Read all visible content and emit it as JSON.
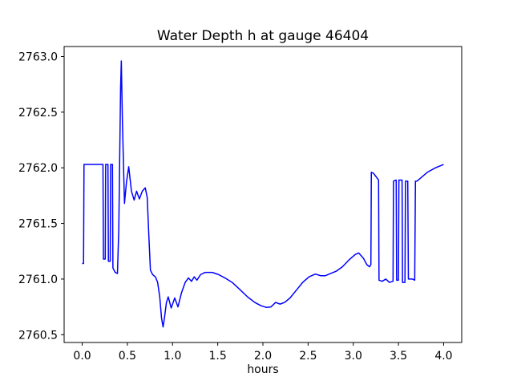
{
  "window": {
    "background": "#ffffff"
  },
  "chart_data": {
    "type": "line",
    "title": "Water Depth h at gauge 46404",
    "xlabel": "hours",
    "ylabel": "",
    "grid": false,
    "legend": "none",
    "axis_color": "#000000",
    "text_color": "#000000",
    "xlim": [
      -0.2,
      4.2
    ],
    "ylim": [
      2760.43,
      2763.09
    ],
    "x_ticks": [
      0.0,
      0.5,
      1.0,
      1.5,
      2.0,
      2.5,
      3.0,
      3.5,
      4.0
    ],
    "x_tick_labels": [
      "0.0",
      "0.5",
      "1.0",
      "1.5",
      "2.0",
      "2.5",
      "3.0",
      "3.5",
      "4.0"
    ],
    "y_ticks": [
      2760.5,
      2761.0,
      2761.5,
      2762.0,
      2762.5,
      2763.0
    ],
    "y_tick_labels": [
      "2760.5",
      "2761.0",
      "2761.5",
      "2762.0",
      "2762.5",
      "2763.0"
    ],
    "series": [
      {
        "name": "water-depth-h",
        "color": "#0000ff",
        "line_width": 1.5,
        "points": [
          [
            0.0,
            2761.14
          ],
          [
            0.015,
            2761.14
          ],
          [
            0.02,
            2762.03
          ],
          [
            0.23,
            2762.03
          ],
          [
            0.235,
            2761.18
          ],
          [
            0.255,
            2761.18
          ],
          [
            0.26,
            2762.03
          ],
          [
            0.285,
            2762.03
          ],
          [
            0.29,
            2761.16
          ],
          [
            0.31,
            2761.16
          ],
          [
            0.315,
            2762.03
          ],
          [
            0.335,
            2762.03
          ],
          [
            0.34,
            2761.1
          ],
          [
            0.365,
            2761.06
          ],
          [
            0.39,
            2761.05
          ],
          [
            0.405,
            2761.45
          ],
          [
            0.425,
            2762.72
          ],
          [
            0.433,
            2762.96
          ],
          [
            0.445,
            2762.42
          ],
          [
            0.468,
            2761.68
          ],
          [
            0.49,
            2761.87
          ],
          [
            0.515,
            2762.01
          ],
          [
            0.545,
            2761.79
          ],
          [
            0.575,
            2761.71
          ],
          [
            0.602,
            2761.79
          ],
          [
            0.633,
            2761.72
          ],
          [
            0.665,
            2761.79
          ],
          [
            0.698,
            2761.82
          ],
          [
            0.72,
            2761.73
          ],
          [
            0.737,
            2761.4
          ],
          [
            0.755,
            2761.08
          ],
          [
            0.78,
            2761.04
          ],
          [
            0.81,
            2761.02
          ],
          [
            0.835,
            2760.97
          ],
          [
            0.858,
            2760.84
          ],
          [
            0.878,
            2760.65
          ],
          [
            0.895,
            2760.57
          ],
          [
            0.912,
            2760.66
          ],
          [
            0.932,
            2760.79
          ],
          [
            0.952,
            2760.84
          ],
          [
            0.985,
            2760.74
          ],
          [
            1.024,
            2760.83
          ],
          [
            1.06,
            2760.75
          ],
          [
            1.1,
            2760.88
          ],
          [
            1.14,
            2760.97
          ],
          [
            1.175,
            2761.01
          ],
          [
            1.21,
            2760.98
          ],
          [
            1.24,
            2761.02
          ],
          [
            1.27,
            2760.99
          ],
          [
            1.31,
            2761.04
          ],
          [
            1.36,
            2761.06
          ],
          [
            1.44,
            2761.06
          ],
          [
            1.51,
            2761.04
          ],
          [
            1.58,
            2761.01
          ],
          [
            1.66,
            2760.97
          ],
          [
            1.74,
            2760.91
          ],
          [
            1.83,
            2760.84
          ],
          [
            1.91,
            2760.79
          ],
          [
            1.98,
            2760.76
          ],
          [
            2.04,
            2760.745
          ],
          [
            2.09,
            2760.75
          ],
          [
            2.14,
            2760.79
          ],
          [
            2.19,
            2760.775
          ],
          [
            2.24,
            2760.79
          ],
          [
            2.3,
            2760.83
          ],
          [
            2.37,
            2760.9
          ],
          [
            2.44,
            2760.97
          ],
          [
            2.51,
            2761.02
          ],
          [
            2.58,
            2761.045
          ],
          [
            2.64,
            2761.03
          ],
          [
            2.69,
            2761.03
          ],
          [
            2.75,
            2761.05
          ],
          [
            2.81,
            2761.07
          ],
          [
            2.88,
            2761.11
          ],
          [
            2.95,
            2761.17
          ],
          [
            3.02,
            2761.22
          ],
          [
            3.06,
            2761.235
          ],
          [
            3.11,
            2761.19
          ],
          [
            3.15,
            2761.13
          ],
          [
            3.18,
            2761.11
          ],
          [
            3.195,
            2761.13
          ],
          [
            3.2,
            2761.96
          ],
          [
            3.225,
            2761.95
          ],
          [
            3.28,
            2761.89
          ],
          [
            3.285,
            2760.99
          ],
          [
            3.32,
            2760.98
          ],
          [
            3.36,
            2761.0
          ],
          [
            3.4,
            2760.97
          ],
          [
            3.44,
            2760.98
          ],
          [
            3.445,
            2761.88
          ],
          [
            3.475,
            2761.89
          ],
          [
            3.48,
            2760.99
          ],
          [
            3.5,
            2760.99
          ],
          [
            3.505,
            2761.89
          ],
          [
            3.54,
            2761.89
          ],
          [
            3.545,
            2760.97
          ],
          [
            3.572,
            2760.97
          ],
          [
            3.578,
            2761.88
          ],
          [
            3.603,
            2761.88
          ],
          [
            3.61,
            2761.0
          ],
          [
            3.655,
            2761.0
          ],
          [
            3.68,
            2760.99
          ],
          [
            3.688,
            2761.88
          ],
          [
            3.705,
            2761.88
          ],
          [
            3.82,
            2761.96
          ],
          [
            3.91,
            2762.0
          ],
          [
            4.0,
            2762.03
          ]
        ]
      }
    ]
  }
}
